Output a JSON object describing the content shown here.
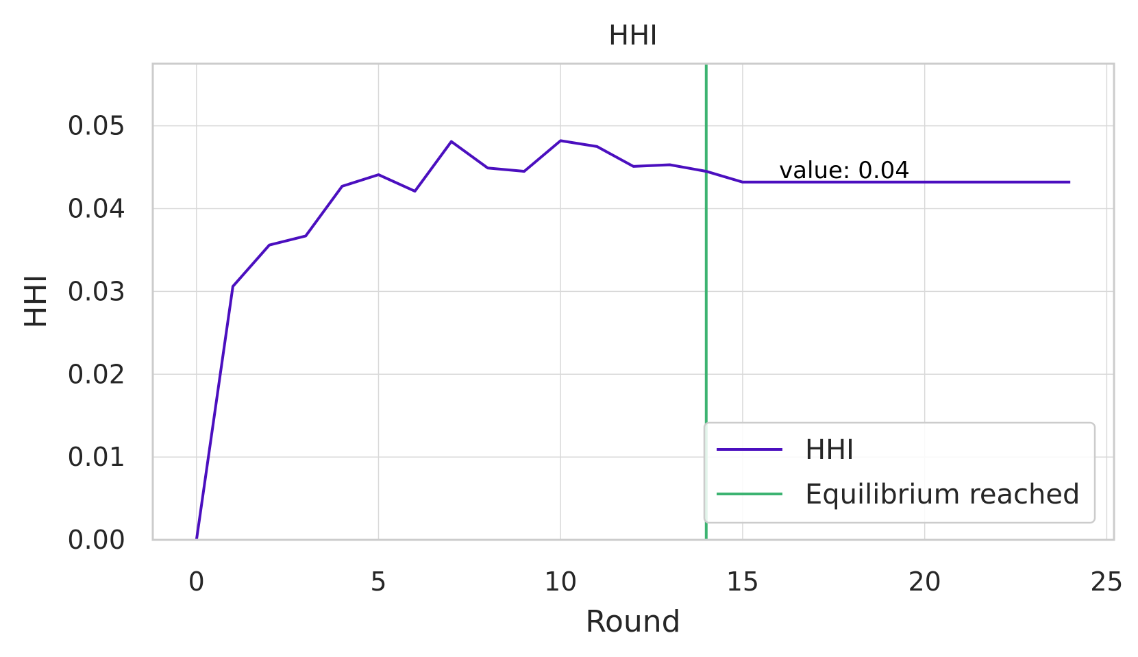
{
  "chart_data": {
    "type": "line",
    "title": "HHI",
    "xlabel": "Round",
    "ylabel": "HHI",
    "xlim": [
      -1.2,
      25.2
    ],
    "ylim": [
      0.0,
      0.0575
    ],
    "x_ticks": [
      0,
      5,
      10,
      15,
      20,
      25
    ],
    "y_ticks": [
      0.0,
      0.01,
      0.02,
      0.03,
      0.04,
      0.05
    ],
    "y_tick_labels": [
      "0.00",
      "0.01",
      "0.02",
      "0.03",
      "0.04",
      "0.05"
    ],
    "grid": true,
    "series": [
      {
        "name": "HHI",
        "color": "#4b0fbf",
        "x": [
          0,
          1,
          2,
          3,
          4,
          5,
          6,
          7,
          8,
          9,
          10,
          11,
          12,
          13,
          14,
          15,
          16,
          17,
          18,
          19,
          20,
          21,
          22,
          23,
          24
        ],
        "y": [
          0.0,
          0.0306,
          0.0356,
          0.0367,
          0.0427,
          0.0441,
          0.0421,
          0.0481,
          0.0449,
          0.0445,
          0.0482,
          0.0475,
          0.0451,
          0.0453,
          0.0445,
          0.0432,
          0.0432,
          0.0432,
          0.0432,
          0.0432,
          0.0432,
          0.0432,
          0.0432,
          0.0432,
          0.0432
        ]
      }
    ],
    "vlines": [
      {
        "name": "Equilibrium reached",
        "x": 14,
        "color": "#3cb371"
      }
    ],
    "annotations": [
      {
        "text": "value: 0.04",
        "x": 16,
        "y": 0.0445
      }
    ],
    "legend": {
      "placement": "lower-right",
      "entries": [
        "HHI",
        "Equilibrium reached"
      ]
    }
  }
}
